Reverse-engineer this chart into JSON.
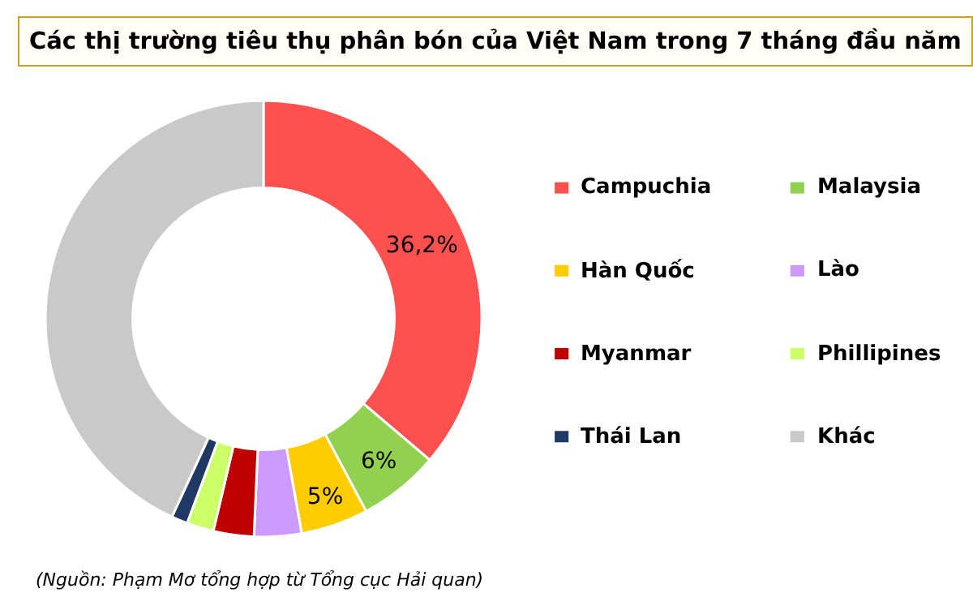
{
  "chart_data": {
    "type": "donut",
    "title": "Các thị trường tiêu thụ phân bón của Việt Nam trong 7 tháng đầu năm",
    "categories": [
      "Campuchia",
      "Malaysia",
      "Hàn Quốc",
      "Lào",
      "Myanmar",
      "Phillipines",
      "Thái Lan",
      "Khác"
    ],
    "values": [
      36.2,
      6,
      5,
      3.5,
      3,
      2,
      1.2,
      43.1
    ],
    "colors": [
      "#ff5050",
      "#92d050",
      "#ffcc00",
      "#cc99ff",
      "#c00000",
      "#ccff66",
      "#1f3864",
      "#c9c9c9"
    ],
    "value_labels": [
      "36,2%",
      "6%",
      "5%",
      null,
      null,
      null,
      null,
      null
    ],
    "legend": "right",
    "annotations": [
      "(Nguồn: Phạm Mơ tổng hợp từ Tổng cục Hải quan)"
    ]
  }
}
